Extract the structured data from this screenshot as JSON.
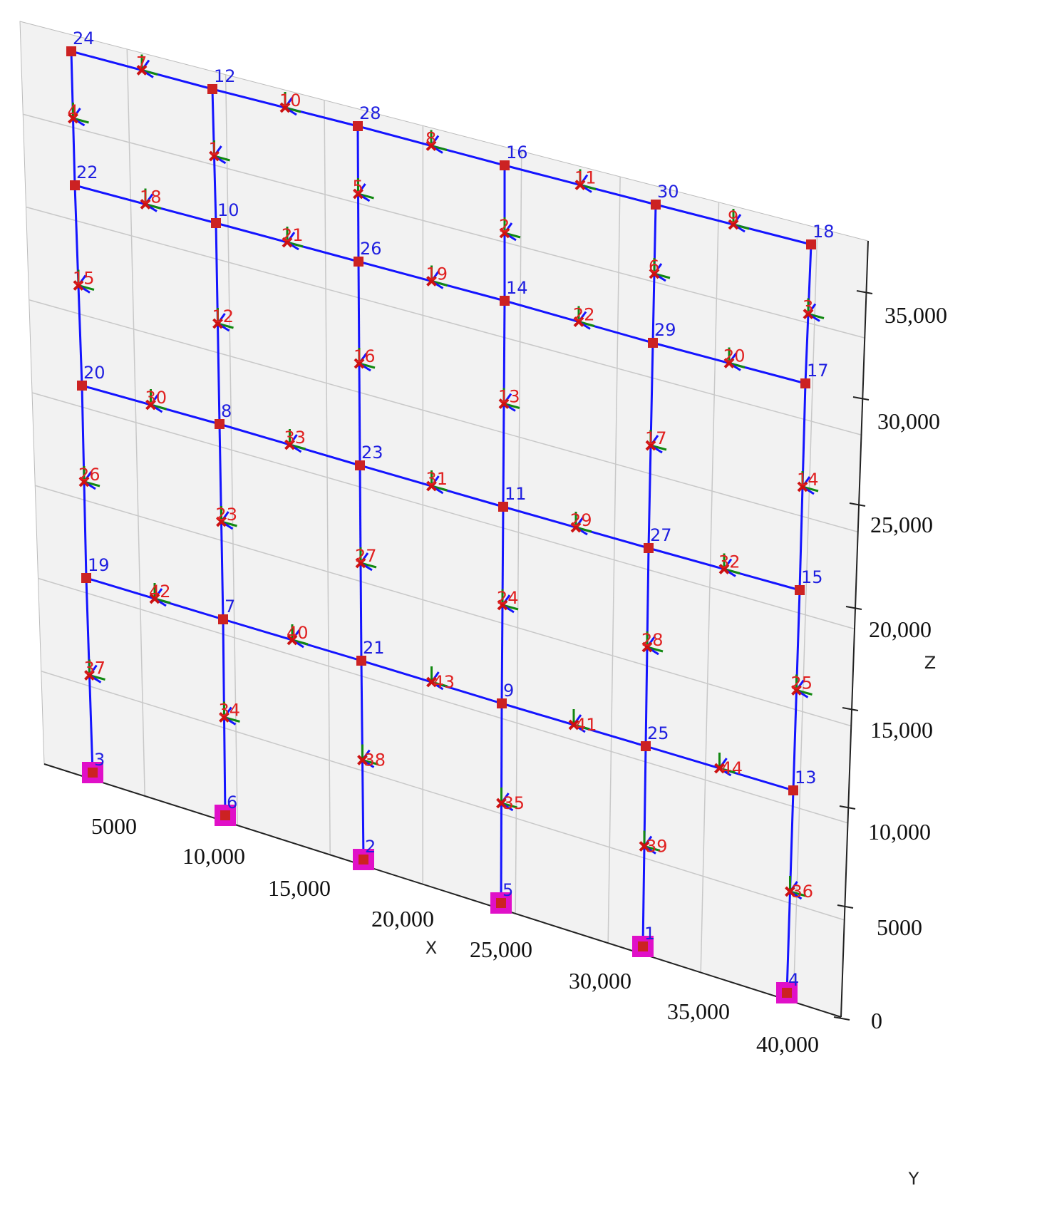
{
  "axes": {
    "x_label": "X",
    "y_label": "Y",
    "z_label": "Z",
    "x_ticks": [
      "5000",
      "10,000",
      "15,000",
      "20,000",
      "25,000",
      "30,000",
      "35,000",
      "40,000"
    ],
    "z_ticks": [
      "35,000",
      "30,000",
      "25,000",
      "20,000",
      "15,000",
      "10,000",
      "5000",
      "0"
    ]
  },
  "nodes": [
    {
      "label": "24"
    },
    {
      "label": "12"
    },
    {
      "label": "28"
    },
    {
      "label": "16"
    },
    {
      "label": "30"
    },
    {
      "label": "18"
    },
    {
      "label": "22"
    },
    {
      "label": "10"
    },
    {
      "label": "26"
    },
    {
      "label": "14"
    },
    {
      "label": "29"
    },
    {
      "label": "17"
    },
    {
      "label": "20"
    },
    {
      "label": "8"
    },
    {
      "label": "23"
    },
    {
      "label": "11"
    },
    {
      "label": "27"
    },
    {
      "label": "15"
    },
    {
      "label": "19"
    },
    {
      "label": "7"
    },
    {
      "label": "21"
    },
    {
      "label": "9"
    },
    {
      "label": "25"
    },
    {
      "label": "13"
    },
    {
      "label": "3"
    },
    {
      "label": "6"
    },
    {
      "label": "2"
    },
    {
      "label": "5"
    },
    {
      "label": "1"
    },
    {
      "label": "4"
    }
  ],
  "elements": [
    {
      "label": "7"
    },
    {
      "label": "10"
    },
    {
      "label": "8"
    },
    {
      "label": "11"
    },
    {
      "label": "9"
    },
    {
      "label": "18"
    },
    {
      "label": "21"
    },
    {
      "label": "19"
    },
    {
      "label": "22"
    },
    {
      "label": "20"
    },
    {
      "label": "30"
    },
    {
      "label": "33"
    },
    {
      "label": "31"
    },
    {
      "label": "29"
    },
    {
      "label": "32"
    },
    {
      "label": "42"
    },
    {
      "label": "40"
    },
    {
      "label": "43"
    },
    {
      "label": "41"
    },
    {
      "label": "44"
    },
    {
      "label": "4"
    },
    {
      "label": "1"
    },
    {
      "label": "5"
    },
    {
      "label": "2"
    },
    {
      "label": "6"
    },
    {
      "label": "3"
    },
    {
      "label": "15"
    },
    {
      "label": "12"
    },
    {
      "label": "16"
    },
    {
      "label": "13"
    },
    {
      "label": "17"
    },
    {
      "label": "14"
    },
    {
      "label": "26"
    },
    {
      "label": "23"
    },
    {
      "label": "27"
    },
    {
      "label": "24"
    },
    {
      "label": "28"
    },
    {
      "label": "25"
    },
    {
      "label": "37"
    },
    {
      "label": "34"
    },
    {
      "label": "38"
    },
    {
      "label": "35"
    },
    {
      "label": "39"
    },
    {
      "label": "36"
    }
  ]
}
